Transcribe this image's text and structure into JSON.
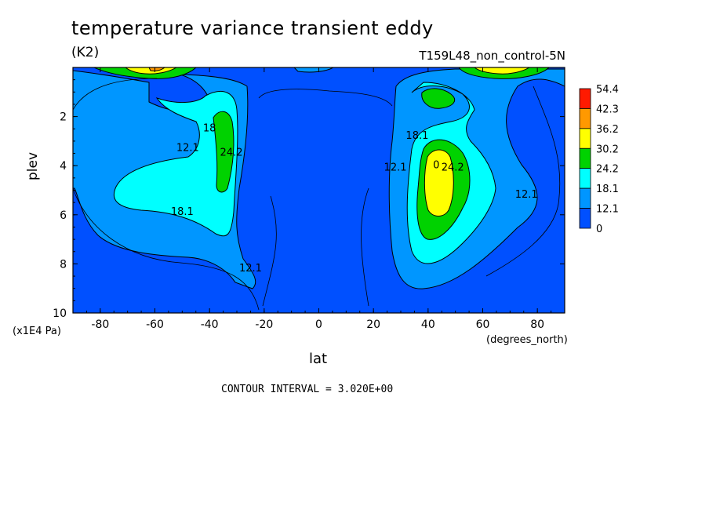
{
  "title": "temperature variance transient eddy",
  "units": "(K2)",
  "run_id": "T159L48_non_control-5N",
  "contour_interval": "CONTOUR INTERVAL = 3.020E+00",
  "chart_data": {
    "type": "heatmap",
    "title": "temperature variance transient eddy",
    "xlabel": "lat",
    "x_units": "(degrees_north)",
    "ylabel": "plev",
    "y_units": "(x1E4 Pa)",
    "xlim": [
      -90,
      90
    ],
    "ylim": [
      10,
      0
    ],
    "x_ticks": [
      -80,
      -60,
      -40,
      -20,
      0,
      20,
      40,
      60,
      80
    ],
    "y_ticks": [
      2,
      4,
      6,
      8,
      10
    ],
    "legend": {
      "levels": [
        "54.4",
        "42.3",
        "36.2",
        "30.2",
        "24.2",
        "18.1",
        "12.1",
        "0"
      ],
      "colors": [
        "#ff1a00",
        "#ff9900",
        "#ffff00",
        "#00d200",
        "#00ffff",
        "#0096ff",
        "#0050ff"
      ]
    },
    "contour_labels": [
      {
        "text": "12.1",
        "lat": -48,
        "plev": 3.4
      },
      {
        "text": "18.1",
        "lat": -50,
        "plev": 6.0
      },
      {
        "text": "24.2",
        "lat": -32,
        "plev": 3.6
      },
      {
        "text": "18",
        "lat": -40,
        "plev": 2.6
      },
      {
        "text": "12.1",
        "lat": -25,
        "plev": 8.3
      },
      {
        "text": "18.1",
        "lat": 36,
        "plev": 2.9
      },
      {
        "text": "12.1",
        "lat": 28,
        "plev": 4.2
      },
      {
        "text": "24.2",
        "lat": 49,
        "plev": 4.2
      },
      {
        "text": "12.1",
        "lat": 76,
        "plev": 5.3
      },
      {
        "text": "0",
        "lat": 43,
        "plev": 4.1
      }
    ]
  }
}
